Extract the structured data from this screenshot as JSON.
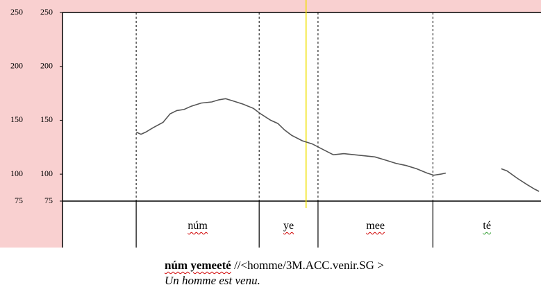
{
  "chart_data": {
    "type": "line",
    "ylim": [
      75,
      250
    ],
    "yticks": [
      75,
      100,
      150,
      200,
      250
    ],
    "xlim": [
      0,
      100
    ],
    "series": [
      {
        "color": "#555555",
        "x": [
          15.4,
          16.4,
          17.4,
          18.9,
          21.0,
          22.5,
          23.9,
          25.4,
          26.9,
          29.0,
          31.2,
          32.7,
          34.1,
          35.6,
          37.7,
          39.9,
          41.4,
          43.5,
          45.0,
          46.4,
          47.9,
          50.1,
          52.2,
          54.4,
          56.6,
          58.8,
          61.0,
          63.1,
          65.3,
          67.5,
          69.7,
          71.8,
          74.0,
          76.2,
          77.6,
          79.1,
          80.1,
          90,
          91.7,
          92.9,
          95.1,
          97.2,
          98.7,
          99.6
        ],
        "values": [
          139,
          137,
          139,
          143,
          148,
          156,
          159,
          160,
          163,
          166,
          167,
          169,
          170,
          168,
          165,
          161,
          156,
          150,
          147,
          141,
          136,
          131,
          128,
          123,
          118,
          119,
          118,
          117,
          116,
          113,
          110,
          108,
          105,
          101,
          99,
          100,
          101,
          null,
          105,
          103,
          96,
          90,
          86,
          84
        ]
      }
    ],
    "boundaries": [
      15.4,
      41.1,
      53.4,
      77.4
    ],
    "cursor": {
      "x": 50.9,
      "color": "#f0e000"
    },
    "segments": [
      {
        "label": "núm",
        "start": 15.4,
        "end": 41.1
      },
      {
        "label": "ye",
        "start": 41.1,
        "end": 53.4
      },
      {
        "label": "mee",
        "start": 53.4,
        "end": 77.4
      },
      {
        "label": "té",
        "start": 77.4,
        "end": 100
      }
    ]
  },
  "caption": {
    "words": "núm yemeeté",
    "gloss": "//<homme/3M.ACC.venir.SG >",
    "translation": "Un homme est venu."
  }
}
